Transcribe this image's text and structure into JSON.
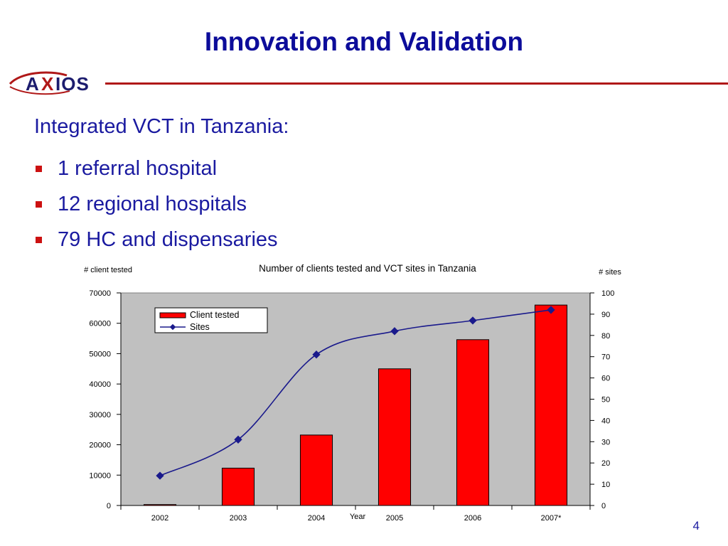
{
  "slide": {
    "title": "Innovation and Validation",
    "logo_text": "AXIOS",
    "subtitle": "Integrated VCT in Tanzania:",
    "bullets": [
      "1 referral hospital",
      "12 regional hospitals",
      "79 HC and dispensaries"
    ],
    "page_number": "4"
  },
  "colors": {
    "title": "#0c0c9a",
    "accent_red": "#cc1111",
    "bar_fill": "#ff0000",
    "line": "#1a1a8c",
    "plot_bg": "#c0c0c0"
  },
  "chart_data": {
    "type": "bar",
    "title": "Number of clients tested and VCT sites in Tanzania",
    "xlabel": "Year",
    "ylabel_left": "# client tested",
    "ylabel_right": "# sites",
    "categories": [
      "2002",
      "2003",
      "2004",
      "2005",
      "2006",
      "2007*"
    ],
    "ylim_left": [
      0,
      70000
    ],
    "yticks_left": [
      0,
      10000,
      20000,
      30000,
      40000,
      50000,
      60000,
      70000
    ],
    "ylim_right": [
      0,
      100
    ],
    "yticks_right": [
      0,
      10,
      20,
      30,
      40,
      50,
      60,
      70,
      80,
      90,
      100
    ],
    "series": [
      {
        "name": "Client tested",
        "type": "bar",
        "axis": "left",
        "values": [
          300,
          12300,
          23200,
          45000,
          54600,
          66000
        ]
      },
      {
        "name": "Sites",
        "type": "line",
        "axis": "right",
        "values": [
          14,
          31,
          71,
          82,
          87,
          92
        ]
      }
    ],
    "legend": "top-left",
    "grid": false
  }
}
